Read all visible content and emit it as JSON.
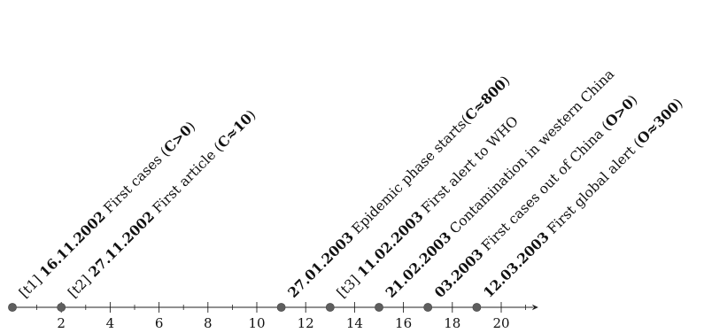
{
  "axis": {
    "min": 0,
    "max": 21.3,
    "major_ticks": [
      2,
      4,
      6,
      8,
      10,
      12,
      14,
      16,
      18,
      20
    ],
    "tick_labels": [
      "2",
      "4",
      "6",
      "8",
      "10",
      "12",
      "14",
      "16",
      "18",
      "20"
    ],
    "minor_ticks": [
      1,
      3,
      5,
      7,
      9,
      11,
      13,
      15,
      17,
      19,
      21
    ]
  },
  "style": {
    "marker_color": "#5e5e5e",
    "axis_color": "#222222",
    "text_color": "#111111"
  },
  "events": [
    {
      "pos": 0,
      "tag": "[t1]",
      "date": "16.11.2002",
      "desc": "First cases (",
      "metric": "C>0",
      "end": ")"
    },
    {
      "pos": 2,
      "tag": "[t2]",
      "date": "27.11.2002",
      "desc": "First article (",
      "metric": "C≈10",
      "end": ")"
    },
    {
      "pos": 11,
      "tag": "",
      "date": "27.01.2003",
      "desc": "Epidemic phase starts(",
      "metric": "C≈800",
      "end": ")"
    },
    {
      "pos": 13,
      "tag": "[t3]",
      "date": "11.02.2003",
      "desc": "First alert to WHO",
      "metric": "",
      "end": ""
    },
    {
      "pos": 15,
      "tag": "",
      "date": "21.02.2003",
      "desc": "Contamination in western China",
      "metric": "",
      "end": ""
    },
    {
      "pos": 17,
      "tag": "",
      "date": "03.2003",
      "desc": "First cases out of China (",
      "metric": "O>0",
      "end": ")"
    },
    {
      "pos": 19,
      "tag": "",
      "date": "12.03.2003",
      "desc": "First global alert (",
      "metric": "O≈300",
      "end": ")"
    }
  ]
}
